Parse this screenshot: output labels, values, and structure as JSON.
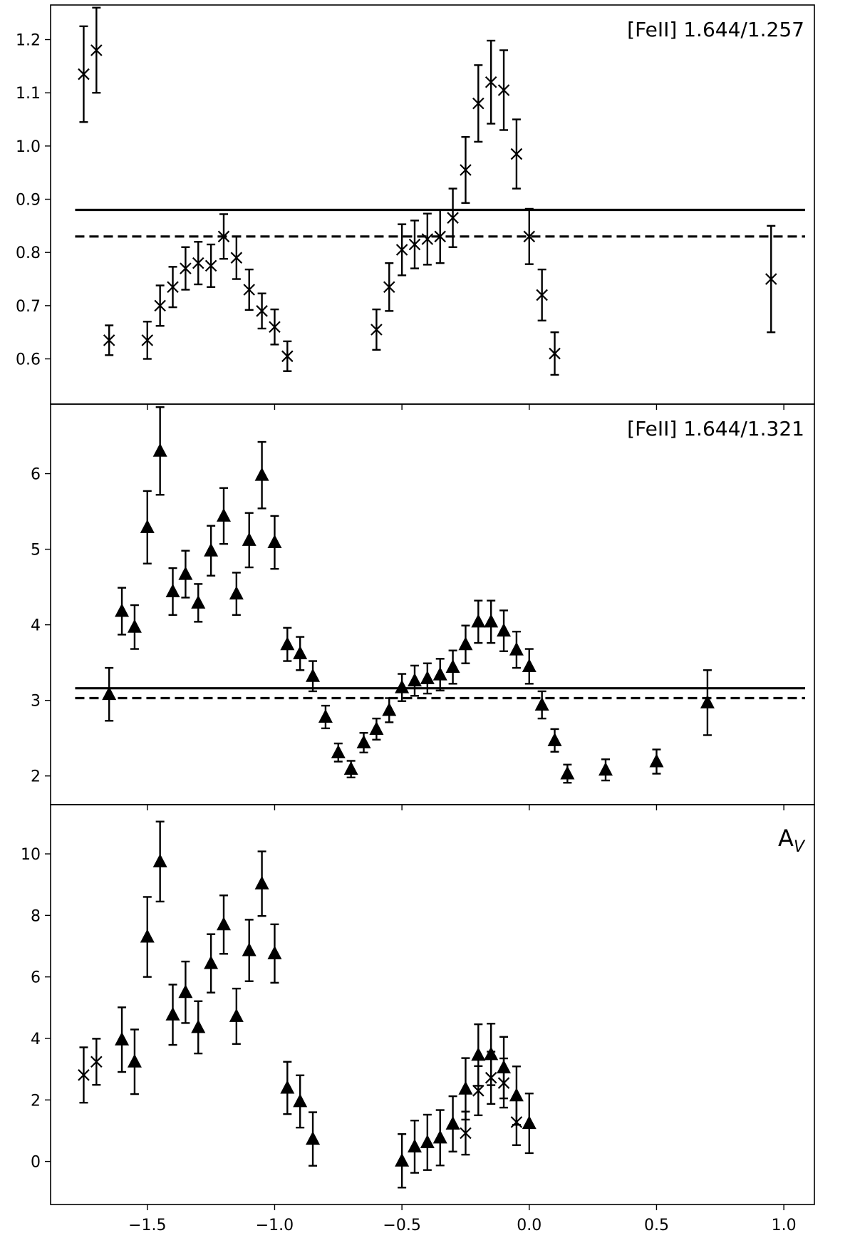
{
  "chart_data": [
    {
      "type": "scatter",
      "title": "",
      "label": "[FeII] 1.644/1.257",
      "xlabel": "",
      "ylabel": "",
      "xlim": [
        -1.88,
        1.12
      ],
      "ylim": [
        0.515,
        1.265
      ],
      "x_ticks": [
        -1.5,
        -1.0,
        -0.5,
        0.0,
        0.5,
        1.0
      ],
      "y_ticks": [
        0.6,
        0.7,
        0.8,
        0.9,
        1.0,
        1.1,
        1.2
      ],
      "y_tick_labels": [
        "0.6",
        "0.7",
        "0.8",
        "0.9",
        "1.0",
        "1.1",
        "1.2"
      ],
      "show_x_tick_labels": false,
      "hlines": [
        {
          "y": 0.88,
          "style": "solid"
        },
        {
          "y": 0.83,
          "style": "dashed"
        }
      ],
      "series": [
        {
          "marker": "x",
          "points": [
            {
              "x": -1.75,
              "y": 1.135,
              "err": 0.09
            },
            {
              "x": -1.7,
              "y": 1.18,
              "err": 0.08
            },
            {
              "x": -1.65,
              "y": 0.635,
              "err": 0.028
            },
            {
              "x": -1.5,
              "y": 0.635,
              "err": 0.035
            },
            {
              "x": -1.45,
              "y": 0.7,
              "err": 0.038
            },
            {
              "x": -1.4,
              "y": 0.735,
              "err": 0.038
            },
            {
              "x": -1.35,
              "y": 0.77,
              "err": 0.04
            },
            {
              "x": -1.3,
              "y": 0.78,
              "err": 0.04
            },
            {
              "x": -1.25,
              "y": 0.775,
              "err": 0.04
            },
            {
              "x": -1.2,
              "y": 0.83,
              "err": 0.042
            },
            {
              "x": -1.15,
              "y": 0.79,
              "err": 0.04
            },
            {
              "x": -1.1,
              "y": 0.73,
              "err": 0.038
            },
            {
              "x": -1.05,
              "y": 0.69,
              "err": 0.033
            },
            {
              "x": -1.0,
              "y": 0.66,
              "err": 0.033
            },
            {
              "x": -0.95,
              "y": 0.605,
              "err": 0.028
            },
            {
              "x": -0.6,
              "y": 0.655,
              "err": 0.038
            },
            {
              "x": -0.55,
              "y": 0.735,
              "err": 0.045
            },
            {
              "x": -0.5,
              "y": 0.805,
              "err": 0.048
            },
            {
              "x": -0.45,
              "y": 0.815,
              "err": 0.045
            },
            {
              "x": -0.4,
              "y": 0.825,
              "err": 0.048
            },
            {
              "x": -0.35,
              "y": 0.83,
              "err": 0.05
            },
            {
              "x": -0.3,
              "y": 0.865,
              "err": 0.055
            },
            {
              "x": -0.25,
              "y": 0.955,
              "err": 0.062
            },
            {
              "x": -0.2,
              "y": 1.08,
              "err": 0.072
            },
            {
              "x": -0.15,
              "y": 1.12,
              "err": 0.078
            },
            {
              "x": -0.1,
              "y": 1.105,
              "err": 0.075
            },
            {
              "x": -0.05,
              "y": 0.985,
              "err": 0.065
            },
            {
              "x": 0.0,
              "y": 0.83,
              "err": 0.052
            },
            {
              "x": 0.05,
              "y": 0.72,
              "err": 0.048
            },
            {
              "x": 0.1,
              "y": 0.61,
              "err": 0.04
            },
            {
              "x": 0.95,
              "y": 0.75,
              "err": 0.1
            }
          ]
        }
      ]
    },
    {
      "type": "scatter",
      "title": "",
      "label": "[FeII] 1.644/1.321",
      "xlabel": "",
      "ylabel": "",
      "xlim": [
        -1.88,
        1.12
      ],
      "ylim": [
        1.62,
        6.92
      ],
      "x_ticks": [
        -1.5,
        -1.0,
        -0.5,
        0.0,
        0.5,
        1.0
      ],
      "y_ticks": [
        2,
        3,
        4,
        5,
        6
      ],
      "y_tick_labels": [
        "2",
        "3",
        "4",
        "5",
        "6"
      ],
      "show_x_tick_labels": false,
      "hlines": [
        {
          "y": 3.16,
          "style": "solid"
        },
        {
          "y": 3.03,
          "style": "dashed"
        }
      ],
      "series": [
        {
          "marker": "triangle",
          "points": [
            {
              "x": -1.65,
              "y": 3.08,
              "err": 0.35
            },
            {
              "x": -1.6,
              "y": 4.18,
              "err": 0.31
            },
            {
              "x": -1.55,
              "y": 3.97,
              "err": 0.29
            },
            {
              "x": -1.5,
              "y": 5.29,
              "err": 0.48
            },
            {
              "x": -1.45,
              "y": 6.3,
              "err": 0.58
            },
            {
              "x": -1.4,
              "y": 4.44,
              "err": 0.31
            },
            {
              "x": -1.35,
              "y": 4.67,
              "err": 0.31
            },
            {
              "x": -1.3,
              "y": 4.29,
              "err": 0.25
            },
            {
              "x": -1.25,
              "y": 4.98,
              "err": 0.33
            },
            {
              "x": -1.2,
              "y": 5.44,
              "err": 0.37
            },
            {
              "x": -1.15,
              "y": 4.41,
              "err": 0.28
            },
            {
              "x": -1.1,
              "y": 5.12,
              "err": 0.36
            },
            {
              "x": -1.05,
              "y": 5.98,
              "err": 0.44
            },
            {
              "x": -1.0,
              "y": 5.09,
              "err": 0.35
            },
            {
              "x": -0.95,
              "y": 3.74,
              "err": 0.22
            },
            {
              "x": -0.9,
              "y": 3.62,
              "err": 0.22
            },
            {
              "x": -0.85,
              "y": 3.32,
              "err": 0.2
            },
            {
              "x": -0.8,
              "y": 2.78,
              "err": 0.15
            },
            {
              "x": -0.75,
              "y": 2.31,
              "err": 0.12
            },
            {
              "x": -0.7,
              "y": 2.09,
              "err": 0.11
            },
            {
              "x": -0.65,
              "y": 2.44,
              "err": 0.13
            },
            {
              "x": -0.6,
              "y": 2.62,
              "err": 0.14
            },
            {
              "x": -0.55,
              "y": 2.87,
              "err": 0.16
            },
            {
              "x": -0.5,
              "y": 3.17,
              "err": 0.18
            },
            {
              "x": -0.45,
              "y": 3.26,
              "err": 0.2
            },
            {
              "x": -0.4,
              "y": 3.29,
              "err": 0.2
            },
            {
              "x": -0.35,
              "y": 3.34,
              "err": 0.21
            },
            {
              "x": -0.3,
              "y": 3.44,
              "err": 0.22
            },
            {
              "x": -0.25,
              "y": 3.74,
              "err": 0.25
            },
            {
              "x": -0.2,
              "y": 4.04,
              "err": 0.28
            },
            {
              "x": -0.15,
              "y": 4.04,
              "err": 0.28
            },
            {
              "x": -0.1,
              "y": 3.92,
              "err": 0.27
            },
            {
              "x": -0.05,
              "y": 3.67,
              "err": 0.24
            },
            {
              "x": 0.0,
              "y": 3.45,
              "err": 0.23
            },
            {
              "x": 0.05,
              "y": 2.94,
              "err": 0.18
            },
            {
              "x": 0.1,
              "y": 2.47,
              "err": 0.15
            },
            {
              "x": 0.15,
              "y": 2.03,
              "err": 0.12
            },
            {
              "x": 0.3,
              "y": 2.08,
              "err": 0.14
            },
            {
              "x": 0.5,
              "y": 2.19,
              "err": 0.16
            },
            {
              "x": 0.7,
              "y": 2.97,
              "err": 0.43
            }
          ]
        }
      ]
    },
    {
      "type": "scatter",
      "title": "",
      "label": "A",
      "label_subscript": "V",
      "xlabel": "",
      "ylabel": "",
      "xlim": [
        -1.88,
        1.12
      ],
      "ylim": [
        -1.4,
        11.6
      ],
      "x_ticks": [
        -1.5,
        -1.0,
        -0.5,
        0.0,
        0.5,
        1.0
      ],
      "x_tick_labels": [
        "−1.5",
        "−1.0",
        "−0.5",
        "0.0",
        "0.5",
        "1.0"
      ],
      "y_ticks": [
        0,
        2,
        4,
        6,
        8,
        10
      ],
      "y_tick_labels": [
        "0",
        "2",
        "4",
        "6",
        "8",
        "10"
      ],
      "show_x_tick_labels": true,
      "hlines": [],
      "series": [
        {
          "marker": "x",
          "points": [
            {
              "x": -1.75,
              "y": 2.81,
              "err": 0.9
            },
            {
              "x": -1.7,
              "y": 3.24,
              "err": 0.75
            },
            {
              "x": -0.25,
              "y": 0.92,
              "err": 0.7
            },
            {
              "x": -0.2,
              "y": 2.3,
              "err": 0.8
            },
            {
              "x": -0.15,
              "y": 2.72,
              "err": 0.85
            },
            {
              "x": -0.1,
              "y": 2.55,
              "err": 0.8
            },
            {
              "x": -0.05,
              "y": 1.28,
              "err": 0.75
            }
          ]
        },
        {
          "marker": "triangle",
          "points": [
            {
              "x": -1.6,
              "y": 3.96,
              "err": 1.05
            },
            {
              "x": -1.55,
              "y": 3.24,
              "err": 1.05
            },
            {
              "x": -1.5,
              "y": 7.3,
              "err": 1.3
            },
            {
              "x": -1.45,
              "y": 9.75,
              "err": 1.3
            },
            {
              "x": -1.4,
              "y": 4.77,
              "err": 0.98
            },
            {
              "x": -1.35,
              "y": 5.5,
              "err": 1.0
            },
            {
              "x": -1.3,
              "y": 4.36,
              "err": 0.85
            },
            {
              "x": -1.25,
              "y": 6.44,
              "err": 0.95
            },
            {
              "x": -1.2,
              "y": 7.7,
              "err": 0.95
            },
            {
              "x": -1.15,
              "y": 4.72,
              "err": 0.9
            },
            {
              "x": -1.1,
              "y": 6.86,
              "err": 1.0
            },
            {
              "x": -1.05,
              "y": 9.03,
              "err": 1.05
            },
            {
              "x": -1.0,
              "y": 6.76,
              "err": 0.95
            },
            {
              "x": -0.95,
              "y": 2.39,
              "err": 0.85
            },
            {
              "x": -0.9,
              "y": 1.95,
              "err": 0.85
            },
            {
              "x": -0.85,
              "y": 0.73,
              "err": 0.87
            },
            {
              "x": -0.5,
              "y": 0.02,
              "err": 0.87
            },
            {
              "x": -0.45,
              "y": 0.48,
              "err": 0.85
            },
            {
              "x": -0.4,
              "y": 0.62,
              "err": 0.9
            },
            {
              "x": -0.35,
              "y": 0.77,
              "err": 0.9
            },
            {
              "x": -0.3,
              "y": 1.22,
              "err": 0.9
            },
            {
              "x": -0.25,
              "y": 2.36,
              "err": 1.0
            },
            {
              "x": -0.2,
              "y": 3.46,
              "err": 1.0
            },
            {
              "x": -0.15,
              "y": 3.48,
              "err": 1.0
            },
            {
              "x": -0.1,
              "y": 3.05,
              "err": 1.0
            },
            {
              "x": -0.05,
              "y": 2.14,
              "err": 0.95
            },
            {
              "x": 0.0,
              "y": 1.24,
              "err": 0.97
            }
          ]
        }
      ]
    }
  ]
}
